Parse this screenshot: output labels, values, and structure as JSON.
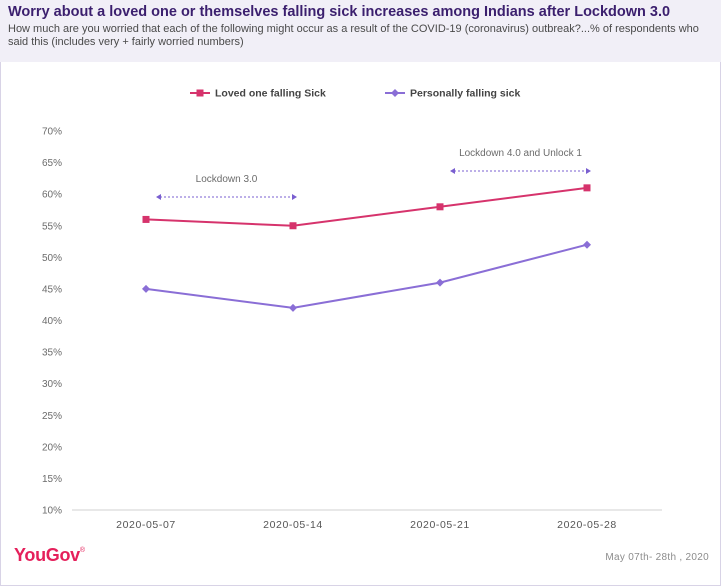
{
  "header": {
    "title": "Worry about a loved one or themselves falling sick increases among Indians after Lockdown 3.0",
    "subtitle": "How much are you worried that each of the following might occur as a result of the COVID-19 (coronavirus) outbreak?...% of respondents who said this (includes very + fairly worried numbers)"
  },
  "chart_data": {
    "type": "line",
    "categories": [
      "2020-05-07",
      "2020-05-14",
      "2020-05-21",
      "2020-05-28"
    ],
    "series": [
      {
        "name": "Loved one falling Sick",
        "color": "#d6336c",
        "marker": "square",
        "values": [
          56,
          55,
          58,
          61
        ]
      },
      {
        "name": "Personally falling sick",
        "color": "#8a6ed6",
        "marker": "diamond",
        "values": [
          45,
          42,
          46,
          52
        ]
      }
    ],
    "ylim": [
      10,
      70
    ],
    "yticks": [
      "10%",
      "15%",
      "20%",
      "25%",
      "30%",
      "35%",
      "40%",
      "45%",
      "50%",
      "55%",
      "60%",
      "65%",
      "70%"
    ],
    "legend_position": "top",
    "annotations": [
      {
        "label": "Lockdown 3.0",
        "from": "2020-05-07",
        "to": "2020-05-14"
      },
      {
        "label": "Lockdown 4.0 and Unlock 1",
        "from": "2020-05-21",
        "to": "2020-05-28"
      }
    ],
    "annotation_color": "#7a5fd0"
  },
  "footer": {
    "logo": "YouGov",
    "logo_mark": "®",
    "date": "May 07th- 28th , 2020"
  }
}
